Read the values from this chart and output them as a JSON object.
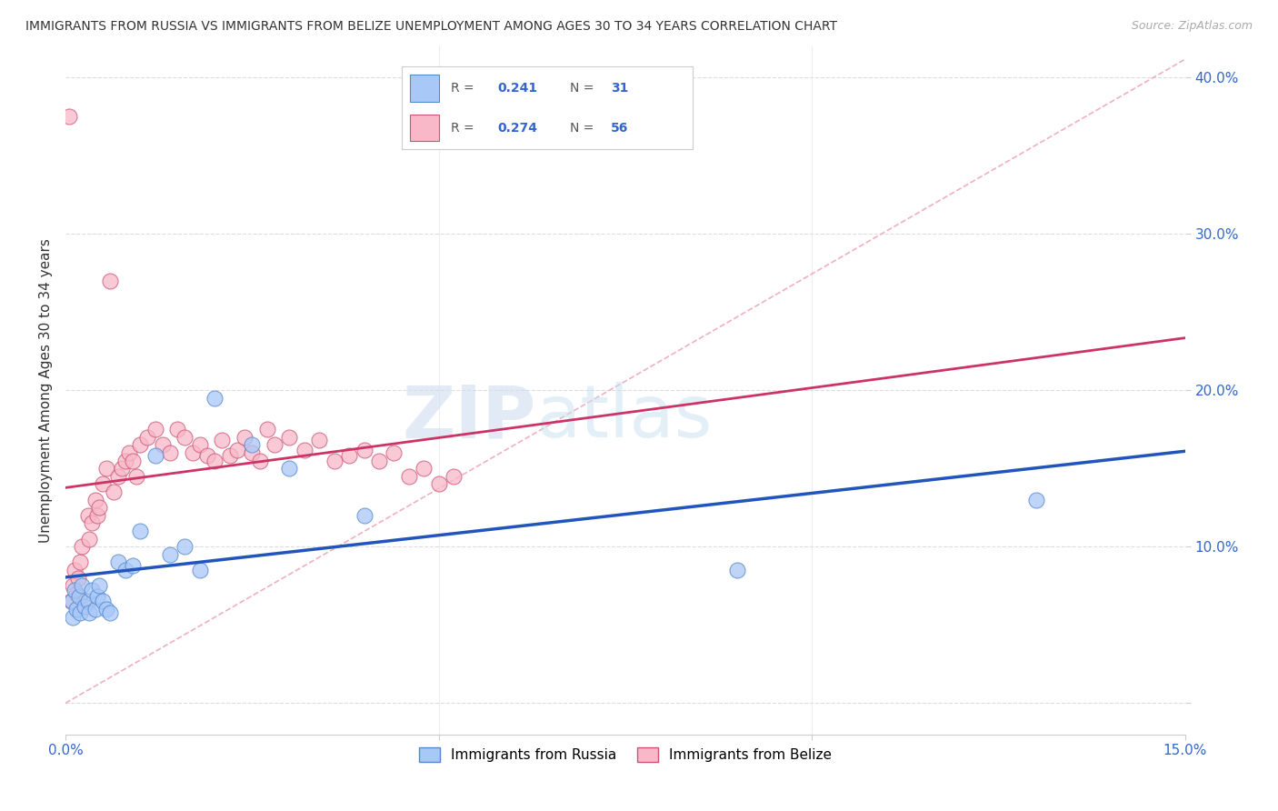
{
  "title": "IMMIGRANTS FROM RUSSIA VS IMMIGRANTS FROM BELIZE UNEMPLOYMENT AMONG AGES 30 TO 34 YEARS CORRELATION CHART",
  "source": "Source: ZipAtlas.com",
  "ylabel": "Unemployment Among Ages 30 to 34 years",
  "xmin": 0.0,
  "xmax": 0.15,
  "ymin": -0.02,
  "ymax": 0.42,
  "yticks": [
    0.0,
    0.1,
    0.2,
    0.3,
    0.4
  ],
  "ytick_labels": [
    "",
    "10.0%",
    "20.0%",
    "30.0%",
    "40.0%"
  ],
  "russia_color": "#a8c8f8",
  "russia_edge": "#5588cc",
  "belize_color": "#f8b8c8",
  "belize_edge": "#cc5577",
  "russia_line_color": "#2255bb",
  "belize_line_color": "#cc3366",
  "ref_line_color": "#cccccc",
  "watermark_zip": "ZIP",
  "watermark_atlas": "atlas",
  "russia_x": [
    0.0008,
    0.001,
    0.0012,
    0.0015,
    0.0018,
    0.002,
    0.0022,
    0.0025,
    0.003,
    0.0032,
    0.0035,
    0.004,
    0.0042,
    0.0045,
    0.005,
    0.0055,
    0.006,
    0.007,
    0.008,
    0.009,
    0.01,
    0.012,
    0.014,
    0.016,
    0.018,
    0.02,
    0.025,
    0.03,
    0.04,
    0.09,
    0.13
  ],
  "russia_y": [
    0.065,
    0.055,
    0.072,
    0.06,
    0.068,
    0.058,
    0.075,
    0.062,
    0.065,
    0.058,
    0.072,
    0.06,
    0.068,
    0.075,
    0.065,
    0.06,
    0.058,
    0.09,
    0.085,
    0.088,
    0.11,
    0.158,
    0.095,
    0.1,
    0.085,
    0.195,
    0.165,
    0.15,
    0.12,
    0.085,
    0.13
  ],
  "belize_x": [
    0.0005,
    0.0007,
    0.001,
    0.0012,
    0.0015,
    0.0017,
    0.002,
    0.0022,
    0.0025,
    0.003,
    0.0032,
    0.0035,
    0.004,
    0.0042,
    0.0045,
    0.005,
    0.0055,
    0.006,
    0.0065,
    0.007,
    0.0075,
    0.008,
    0.0085,
    0.009,
    0.0095,
    0.01,
    0.011,
    0.012,
    0.013,
    0.014,
    0.015,
    0.016,
    0.017,
    0.018,
    0.019,
    0.02,
    0.021,
    0.022,
    0.023,
    0.024,
    0.025,
    0.026,
    0.027,
    0.028,
    0.03,
    0.032,
    0.034,
    0.036,
    0.038,
    0.04,
    0.042,
    0.044,
    0.046,
    0.048,
    0.05,
    0.052
  ],
  "belize_y": [
    0.375,
    0.065,
    0.075,
    0.085,
    0.07,
    0.08,
    0.09,
    0.1,
    0.065,
    0.12,
    0.105,
    0.115,
    0.13,
    0.12,
    0.125,
    0.14,
    0.15,
    0.27,
    0.135,
    0.145,
    0.15,
    0.155,
    0.16,
    0.155,
    0.145,
    0.165,
    0.17,
    0.175,
    0.165,
    0.16,
    0.175,
    0.17,
    0.16,
    0.165,
    0.158,
    0.155,
    0.168,
    0.158,
    0.162,
    0.17,
    0.16,
    0.155,
    0.175,
    0.165,
    0.17,
    0.162,
    0.168,
    0.155,
    0.158,
    0.162,
    0.155,
    0.16,
    0.145,
    0.15,
    0.14,
    0.145
  ]
}
